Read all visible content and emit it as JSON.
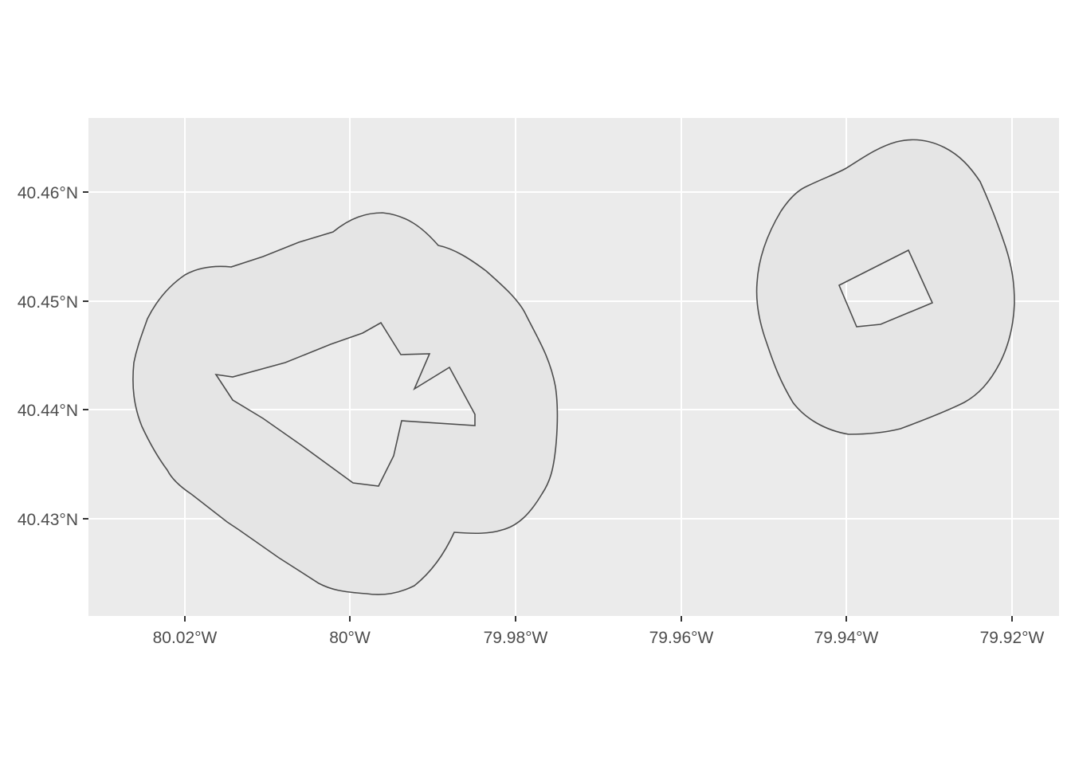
{
  "map": {
    "x_ticks": [
      "80.02°W",
      "80°W",
      "79.98°W",
      "79.96°W",
      "79.94°W",
      "79.92°W"
    ],
    "y_ticks": [
      "40.46°N",
      "40.45°N",
      "40.44°N",
      "40.43°N"
    ],
    "panel_color": "#ebebeb",
    "grid_color": "#ffffff",
    "fill_color": "#e5e5e5",
    "outline_color": "#4d4d4d"
  }
}
